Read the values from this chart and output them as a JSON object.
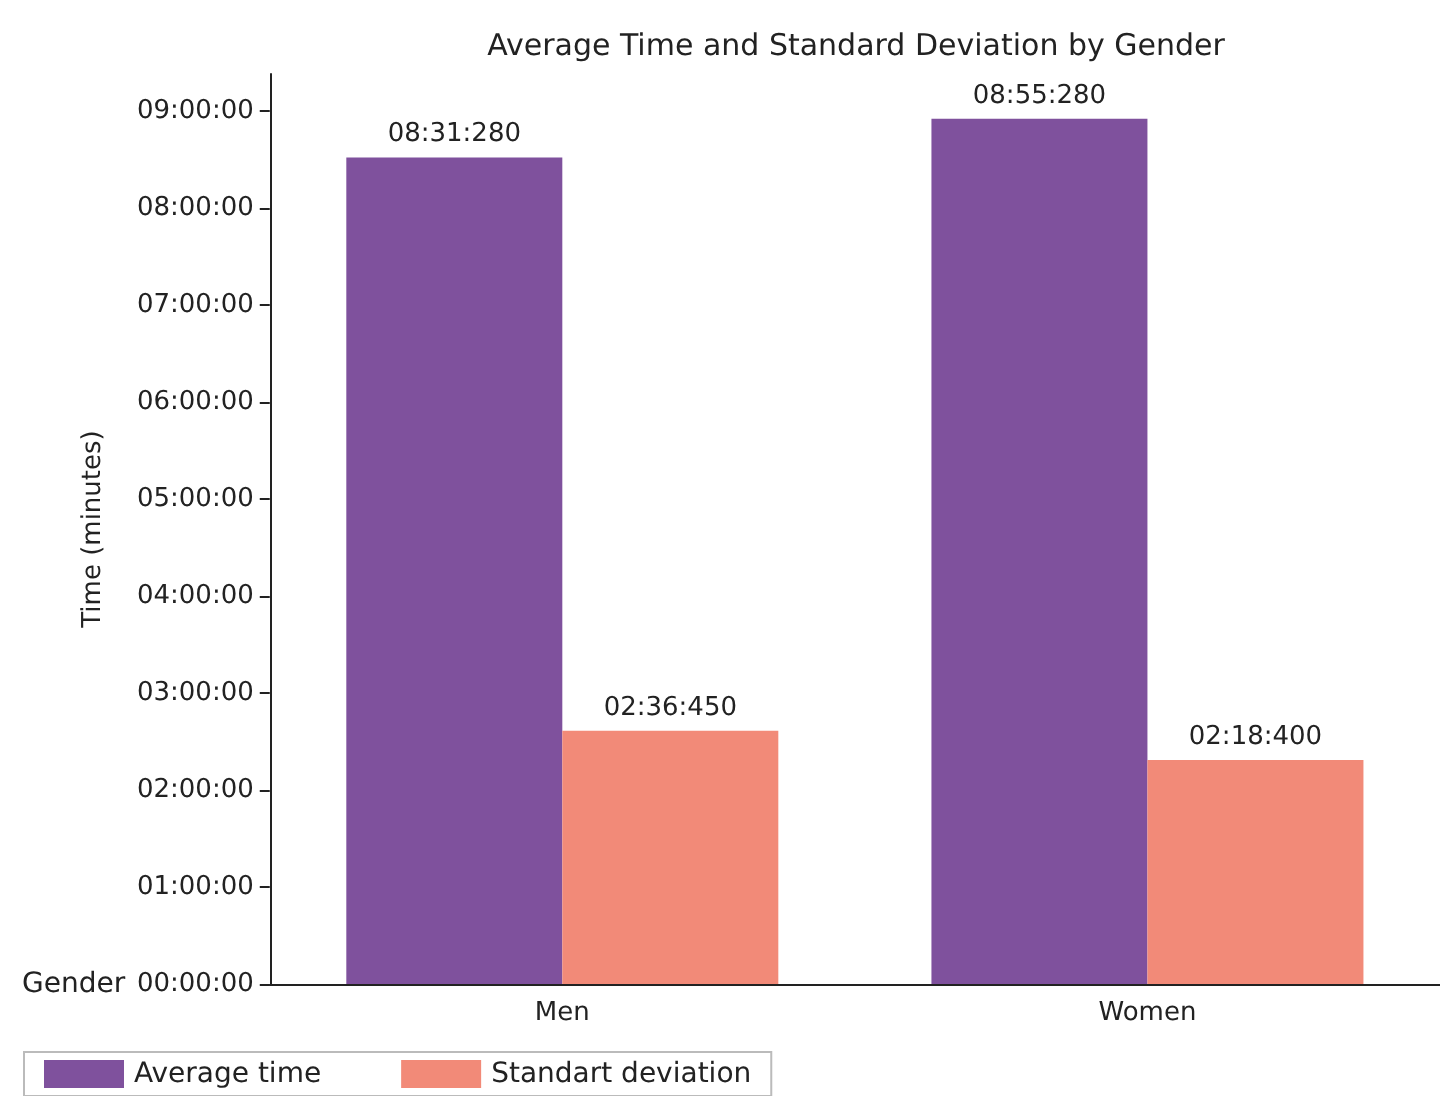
{
  "chart_data": {
    "type": "bar",
    "title": "Average Time and Standard Deviation by Gender",
    "xlabel": "Gender",
    "ylabel": "Time (minutes)",
    "categories": [
      "Men",
      "Women"
    ],
    "series": [
      {
        "name": "Average time",
        "color": "#7f519d",
        "values": [
          8.52,
          8.92
        ],
        "value_labels": [
          "08:31:280",
          "08:55:280"
        ]
      },
      {
        "name": "Standart deviation",
        "color": "#f28a78",
        "values": [
          2.61,
          2.31
        ],
        "value_labels": [
          "02:36:450",
          "02:18:400"
        ]
      }
    ],
    "ylim": [
      0,
      9.38
    ],
    "yticks": [
      {
        "value": 0,
        "label": "00:00:00"
      },
      {
        "value": 1,
        "label": "01:00:00"
      },
      {
        "value": 2,
        "label": "02:00:00"
      },
      {
        "value": 3,
        "label": "03:00:00"
      },
      {
        "value": 4,
        "label": "04:00:00"
      },
      {
        "value": 5,
        "label": "05:00:00"
      },
      {
        "value": 6,
        "label": "06:00:00"
      },
      {
        "value": 7,
        "label": "07:00:00"
      },
      {
        "value": 8,
        "label": "08:00:00"
      },
      {
        "value": 9,
        "label": "09:00:00"
      }
    ],
    "grid": false,
    "legend": "bottom left"
  }
}
